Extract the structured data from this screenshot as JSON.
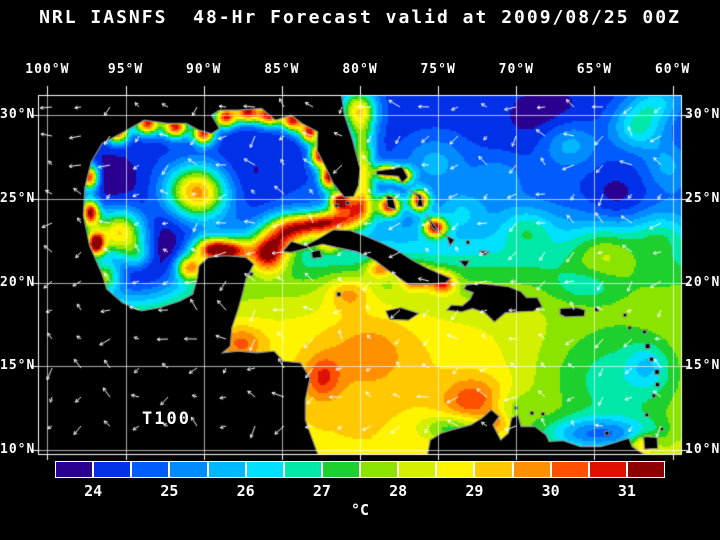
{
  "title": "NRL IASNFS  48-Hr Forecast valid at 2009/08/25 00Z",
  "field_label": "T100",
  "unit_label": "°C",
  "style": {
    "background": "#000000",
    "text": "#ffffff",
    "land": "#000000",
    "coastline": "#8c8c8c",
    "grid": "rgba(255,255,255,0.85)",
    "frame": "#ffffff",
    "vector": "rgba(255,255,255,0.95)"
  },
  "axes": {
    "lon_ticks": [
      {
        "label": "100°W",
        "lon": -100
      },
      {
        "label": "95°W",
        "lon": -95
      },
      {
        "label": "90°W",
        "lon": -90
      },
      {
        "label": "85°W",
        "lon": -85
      },
      {
        "label": "80°W",
        "lon": -80
      },
      {
        "label": "75°W",
        "lon": -75
      },
      {
        "label": "70°W",
        "lon": -70
      },
      {
        "label": "65°W",
        "lon": -65
      },
      {
        "label": "60°W",
        "lon": -60
      }
    ],
    "lat_ticks": [
      {
        "label": "30°N",
        "lat": 30
      },
      {
        "label": "25°N",
        "lat": 25
      },
      {
        "label": "20°N",
        "lat": 20
      },
      {
        "label": "15°N",
        "lat": 15
      },
      {
        "label": "10°N",
        "lat": 10
      }
    ]
  },
  "colorbar": {
    "min": 23.5,
    "max": 31.5,
    "step": 0.5,
    "colors": [
      "#2a0090",
      "#0030e8",
      "#005cff",
      "#008cff",
      "#00b8ff",
      "#00e0ff",
      "#00e8a8",
      "#1ed02e",
      "#8ae400",
      "#d2f000",
      "#fff400",
      "#ffc800",
      "#ff9000",
      "#ff5000",
      "#e01000",
      "#8c0000"
    ],
    "ticks": [
      {
        "label": "24",
        "value": 24
      },
      {
        "label": "25",
        "value": 25
      },
      {
        "label": "26",
        "value": 26
      },
      {
        "label": "27",
        "value": 27
      },
      {
        "label": "28",
        "value": 28
      },
      {
        "label": "29",
        "value": 29
      },
      {
        "label": "30",
        "value": 30
      },
      {
        "label": "31",
        "value": 31
      }
    ]
  },
  "chart_data": {
    "type": "heatmap",
    "title": "NRL IASNFS  48-Hr Forecast valid at 2009/08/25 00Z",
    "field": "T100",
    "units": "°C",
    "scale_min_c": 23.5,
    "scale_max_c": 31.5,
    "contour_interval_c": 0.5,
    "lon_range": [
      -100.6,
      -59.4
    ],
    "lat_range": [
      9.7,
      31.2
    ],
    "base_field": {
      "t_min_c": 24.2,
      "t_amp_c": 4.8,
      "lat_mid": 21.5,
      "lat_width": 1.8
    },
    "features": [
      [
        -90.4,
        25.4,
        5.5,
        1.35,
        1.1
      ],
      [
        -95.3,
        22.9,
        5.2,
        1.15,
        1.0
      ],
      [
        -96.3,
        20.4,
        3.2,
        0.7,
        0.6
      ],
      [
        -94.2,
        21.6,
        2.2,
        0.7,
        0.6
      ],
      [
        -85.9,
        21.8,
        5.0,
        0.85,
        0.8
      ],
      [
        -84.8,
        23.0,
        3.8,
        0.9,
        0.7
      ],
      [
        -83.2,
        23.4,
        4.2,
        1.1,
        0.5
      ],
      [
        -81.4,
        23.7,
        4.2,
        1.1,
        0.5
      ],
      [
        -80.1,
        24.5,
        4.2,
        0.7,
        0.6
      ],
      [
        -79.8,
        26.0,
        3.2,
        0.5,
        1.0
      ],
      [
        -79.85,
        28.0,
        3.0,
        0.55,
        1.2
      ],
      [
        -80.1,
        30.3,
        4.4,
        0.8,
        0.9
      ],
      [
        -94.6,
        20.6,
        -3.4,
        2.8,
        1.7
      ],
      [
        -92.5,
        23.0,
        -1.2,
        2.2,
        1.5
      ],
      [
        -96.0,
        25.8,
        -0.9,
        1.6,
        1.4
      ],
      [
        -87.5,
        25.5,
        -0.7,
        2.0,
        1.8
      ],
      [
        -97.3,
        26.3,
        6.5,
        0.4,
        0.5
      ],
      [
        -97.25,
        24.2,
        6.5,
        0.4,
        0.55
      ],
      [
        -96.9,
        22.3,
        6.5,
        0.4,
        0.5
      ],
      [
        -95.5,
        29.0,
        6.5,
        0.5,
        0.45
      ],
      [
        -93.6,
        29.5,
        6.5,
        0.55,
        0.45
      ],
      [
        -91.8,
        29.3,
        6.5,
        0.55,
        0.45
      ],
      [
        -90.0,
        28.9,
        6.5,
        0.5,
        0.45
      ],
      [
        -88.6,
        29.9,
        6.5,
        0.5,
        0.45
      ],
      [
        -87.2,
        30.2,
        6.5,
        0.55,
        0.45
      ],
      [
        -85.8,
        30.0,
        6.5,
        0.55,
        0.45
      ],
      [
        -84.3,
        29.7,
        6.5,
        0.5,
        0.45
      ],
      [
        -83.2,
        29.0,
        6.5,
        0.45,
        0.45
      ],
      [
        -82.6,
        27.6,
        6.5,
        0.4,
        0.5
      ],
      [
        -82.0,
        26.3,
        6.5,
        0.4,
        0.5
      ],
      [
        -81.3,
        24.9,
        6.0,
        0.45,
        0.4
      ],
      [
        -90.9,
        20.9,
        4.5,
        0.6,
        0.5
      ],
      [
        -89.6,
        22.0,
        5.0,
        0.8,
        0.5
      ],
      [
        -88.2,
        21.9,
        4.5,
        0.8,
        0.5
      ],
      [
        -78.1,
        24.6,
        6.2,
        0.5,
        0.45
      ],
      [
        -76.2,
        24.9,
        6.0,
        0.45,
        0.45
      ],
      [
        -75.2,
        23.3,
        6.0,
        0.5,
        0.4
      ],
      [
        -78.3,
        26.6,
        5.5,
        0.5,
        0.35
      ],
      [
        -77.2,
        26.4,
        5.0,
        0.4,
        0.35
      ],
      [
        -78.7,
        20.85,
        2.8,
        0.6,
        0.4
      ],
      [
        -82.0,
        22.25,
        2.5,
        0.7,
        0.35
      ],
      [
        -76.4,
        20.3,
        3.4,
        0.7,
        0.5
      ],
      [
        -74.7,
        20.0,
        3.2,
        0.55,
        0.45
      ],
      [
        -80.7,
        19.4,
        1.6,
        1.0,
        0.7
      ],
      [
        -79.5,
        16.0,
        1.0,
        2.2,
        1.8
      ],
      [
        -72.6,
        12.9,
        1.7,
        1.4,
        1.0
      ],
      [
        -71.2,
        11.6,
        1.3,
        0.6,
        0.5
      ],
      [
        -87.6,
        16.4,
        1.4,
        1.0,
        0.7
      ],
      [
        -82.4,
        14.3,
        1.5,
        0.8,
        0.9
      ],
      [
        -74.0,
        11.3,
        -1.8,
        1.5,
        0.6
      ],
      [
        -63.5,
        14.0,
        -2.2,
        4.0,
        2.8
      ],
      [
        -61.6,
        15.0,
        -1.2,
        0.9,
        0.9
      ],
      [
        -64.9,
        10.9,
        -3.0,
        2.6,
        0.75
      ],
      [
        -61.9,
        10.4,
        2.0,
        0.6,
        0.4
      ],
      [
        -70.3,
        12.4,
        -1.0,
        1.2,
        0.8
      ],
      [
        -75.2,
        27.2,
        1.3,
        1.4,
        1.1
      ],
      [
        -71.2,
        26.2,
        0.9,
        1.2,
        1.0
      ],
      [
        -66.6,
        28.3,
        1.5,
        1.3,
        1.0
      ],
      [
        -62.2,
        29.3,
        2.3,
        1.2,
        1.0
      ],
      [
        -60.3,
        27.0,
        1.2,
        1.0,
        1.0
      ],
      [
        -69.3,
        23.2,
        1.4,
        1.2,
        0.9
      ],
      [
        -64.3,
        21.9,
        1.6,
        1.6,
        1.2
      ],
      [
        -60.8,
        22.8,
        1.2,
        1.2,
        1.0
      ],
      [
        -73.5,
        24.3,
        1.0,
        1.0,
        0.8
      ],
      [
        -63.6,
        25.0,
        -0.9,
        1.4,
        1.1
      ],
      [
        -68.0,
        29.8,
        -0.6,
        1.8,
        1.2
      ],
      [
        -60.9,
        30.8,
        1.6,
        1.2,
        0.8
      ],
      [
        -65.5,
        19.8,
        -1.0,
        1.5,
        0.7
      ]
    ],
    "vectors": {
      "spacing_px": 29,
      "style": "white-arrows"
    }
  },
  "geo": {
    "mainland": [
      [
        -100.6,
        31.3
      ],
      [
        -81.2,
        31.3
      ],
      [
        -81.0,
        30.0
      ],
      [
        -80.5,
        28.6
      ],
      [
        -80.0,
        26.8
      ],
      [
        -80.1,
        25.8
      ],
      [
        -80.4,
        25.15
      ],
      [
        -81.0,
        25.1
      ],
      [
        -81.7,
        25.9
      ],
      [
        -82.2,
        26.9
      ],
      [
        -82.75,
        27.9
      ],
      [
        -82.7,
        29.0
      ],
      [
        -83.7,
        29.5
      ],
      [
        -84.4,
        30.0
      ],
      [
        -85.4,
        29.7
      ],
      [
        -86.3,
        30.4
      ],
      [
        -87.8,
        30.3
      ],
      [
        -89.0,
        30.3
      ],
      [
        -89.5,
        30.0
      ],
      [
        -89.0,
        29.2
      ],
      [
        -89.5,
        28.9
      ],
      [
        -90.3,
        29.1
      ],
      [
        -91.1,
        29.5
      ],
      [
        -92.3,
        29.5
      ],
      [
        -93.8,
        29.7
      ],
      [
        -95.1,
        29.0
      ],
      [
        -96.5,
        28.3
      ],
      [
        -97.2,
        27.2
      ],
      [
        -97.6,
        25.7
      ],
      [
        -97.7,
        24.0
      ],
      [
        -97.3,
        22.2
      ],
      [
        -96.5,
        20.5
      ],
      [
        -96.2,
        19.6
      ],
      [
        -95.2,
        18.8
      ],
      [
        -94.0,
        18.3
      ],
      [
        -92.8,
        18.5
      ],
      [
        -91.5,
        18.9
      ],
      [
        -90.7,
        19.3
      ],
      [
        -90.4,
        20.3
      ],
      [
        -90.3,
        21.0
      ],
      [
        -89.7,
        21.5
      ],
      [
        -88.6,
        21.6
      ],
      [
        -87.3,
        21.5
      ],
      [
        -86.8,
        21.1
      ],
      [
        -87.3,
        20.2
      ],
      [
        -87.5,
        19.4
      ],
      [
        -87.8,
        18.4
      ],
      [
        -88.2,
        17.3
      ],
      [
        -88.3,
        16.2
      ],
      [
        -88.8,
        15.8
      ],
      [
        -87.8,
        15.9
      ],
      [
        -86.6,
        15.8
      ],
      [
        -85.5,
        15.9
      ],
      [
        -84.9,
        15.3
      ],
      [
        -83.8,
        15.2
      ],
      [
        -83.2,
        14.3
      ],
      [
        -83.5,
        13.0
      ],
      [
        -83.5,
        11.8
      ],
      [
        -83.0,
        10.5
      ],
      [
        -82.6,
        9.5
      ],
      [
        -81.6,
        9.1
      ],
      [
        -80.7,
        9.0
      ],
      [
        -79.9,
        9.4
      ],
      [
        -79.1,
        9.3
      ],
      [
        -78.2,
        8.8
      ],
      [
        -77.3,
        8.4
      ],
      [
        -76.8,
        8.9
      ],
      [
        -76.9,
        9.5
      ],
      [
        -75.7,
        9.6
      ],
      [
        -75.5,
        10.6
      ],
      [
        -74.8,
        11.0
      ],
      [
        -74.1,
        11.2
      ],
      [
        -72.9,
        11.5
      ],
      [
        -72.2,
        11.9
      ],
      [
        -71.6,
        12.4
      ],
      [
        -71.1,
        12.0
      ],
      [
        -71.5,
        11.5
      ],
      [
        -71.0,
        10.6
      ],
      [
        -70.5,
        11.0
      ],
      [
        -70.3,
        11.9
      ],
      [
        -69.9,
        12.1
      ],
      [
        -69.7,
        11.4
      ],
      [
        -68.8,
        11.4
      ],
      [
        -68.1,
        10.9
      ],
      [
        -67.9,
        10.5
      ],
      [
        -67.0,
        10.55
      ],
      [
        -65.9,
        10.2
      ],
      [
        -64.6,
        10.2
      ],
      [
        -63.8,
        10.4
      ],
      [
        -62.8,
        10.7
      ],
      [
        -62.6,
        10.2
      ],
      [
        -62.1,
        9.9
      ],
      [
        -61.2,
        9.4
      ],
      [
        -100.6,
        9.4
      ]
    ],
    "islands": [
      [
        [
          -84.95,
          21.85
        ],
        [
          -84.4,
          22.45
        ],
        [
          -83.5,
          22.2
        ],
        [
          -82.6,
          22.65
        ],
        [
          -81.7,
          23.15
        ],
        [
          -80.6,
          23.1
        ],
        [
          -79.6,
          22.75
        ],
        [
          -78.7,
          22.4
        ],
        [
          -77.6,
          21.9
        ],
        [
          -76.6,
          21.3
        ],
        [
          -75.7,
          20.85
        ],
        [
          -74.2,
          20.25
        ],
        [
          -74.5,
          20.0
        ],
        [
          -75.5,
          19.9
        ],
        [
          -76.9,
          19.9
        ],
        [
          -77.6,
          20.35
        ],
        [
          -78.3,
          20.8
        ],
        [
          -79.0,
          21.3
        ],
        [
          -80.2,
          21.85
        ],
        [
          -81.5,
          22.1
        ],
        [
          -82.4,
          22.3
        ],
        [
          -83.4,
          22.05
        ],
        [
          -84.4,
          21.8
        ]
      ],
      [
        [
          -83.1,
          21.85
        ],
        [
          -82.55,
          21.95
        ],
        [
          -82.45,
          21.5
        ],
        [
          -83.05,
          21.45
        ]
      ],
      [
        [
          -78.35,
          18.3
        ],
        [
          -77.4,
          18.5
        ],
        [
          -76.25,
          18.15
        ],
        [
          -76.9,
          17.75
        ],
        [
          -78.1,
          17.8
        ]
      ],
      [
        [
          -74.45,
          18.35
        ],
        [
          -73.5,
          18.25
        ],
        [
          -72.8,
          18.45
        ],
        [
          -72.0,
          18.2
        ],
        [
          -71.4,
          17.65
        ],
        [
          -70.7,
          18.2
        ],
        [
          -69.9,
          18.25
        ],
        [
          -68.9,
          18.3
        ],
        [
          -68.35,
          18.55
        ],
        [
          -68.65,
          19.1
        ],
        [
          -69.35,
          19.1
        ],
        [
          -69.7,
          19.45
        ],
        [
          -70.5,
          19.75
        ],
        [
          -71.4,
          19.85
        ],
        [
          -72.4,
          19.95
        ],
        [
          -73.2,
          19.85
        ],
        [
          -73.35,
          19.6
        ],
        [
          -72.75,
          19.4
        ],
        [
          -72.95,
          19.0
        ],
        [
          -73.45,
          18.6
        ],
        [
          -74.15,
          18.65
        ]
      ],
      [
        [
          -67.2,
          18.45
        ],
        [
          -66.1,
          18.5
        ],
        [
          -65.6,
          18.35
        ],
        [
          -65.65,
          18.0
        ],
        [
          -66.85,
          17.95
        ],
        [
          -67.2,
          18.1
        ]
      ],
      [
        [
          -78.95,
          26.65
        ],
        [
          -78.2,
          26.75
        ],
        [
          -77.3,
          26.9
        ],
        [
          -76.95,
          26.3
        ],
        [
          -77.3,
          25.95
        ],
        [
          -77.55,
          26.35
        ],
        [
          -78.95,
          26.45
        ]
      ],
      [
        [
          -78.3,
          25.2
        ],
        [
          -77.9,
          25.1
        ],
        [
          -77.7,
          24.35
        ],
        [
          -78.25,
          24.5
        ]
      ],
      [
        [
          -76.75,
          25.45
        ],
        [
          -76.1,
          25.2
        ],
        [
          -75.95,
          24.55
        ],
        [
          -76.35,
          24.55
        ],
        [
          -76.25,
          25.1
        ]
      ],
      [
        [
          -75.7,
          23.95
        ],
        [
          -75.1,
          23.25
        ],
        [
          -74.85,
          22.95
        ],
        [
          -75.35,
          23.25
        ]
      ],
      [
        [
          -74.45,
          22.8
        ],
        [
          -73.95,
          22.55
        ],
        [
          -74.25,
          22.2
        ]
      ],
      [
        [
          -73.65,
          21.3
        ],
        [
          -73.0,
          21.3
        ],
        [
          -73.25,
          20.9
        ]
      ],
      [
        [
          -72.35,
          21.9
        ],
        [
          -71.7,
          21.85
        ],
        [
          -72.05,
          21.6
        ]
      ],
      [
        [
          -61.85,
          10.8
        ],
        [
          -61.0,
          10.75
        ],
        [
          -60.95,
          10.1
        ],
        [
          -61.8,
          10.05
        ]
      ]
    ],
    "island_dots": [
      [
        -81.35,
        19.3,
        0.25
      ],
      [
        -73.1,
        22.4,
        0.22
      ],
      [
        -64.85,
        18.4,
        0.25
      ],
      [
        -63.05,
        18.05,
        0.2
      ],
      [
        -62.75,
        17.3,
        0.2
      ],
      [
        -61.8,
        17.05,
        0.22
      ],
      [
        -61.6,
        16.2,
        0.3
      ],
      [
        -61.35,
        15.42,
        0.25
      ],
      [
        -61.0,
        14.66,
        0.28
      ],
      [
        -60.97,
        13.9,
        0.25
      ],
      [
        -61.2,
        13.25,
        0.22
      ],
      [
        -61.65,
        12.1,
        0.22
      ],
      [
        -60.7,
        11.25,
        0.2
      ],
      [
        -70.0,
        12.5,
        0.2
      ],
      [
        -69.0,
        12.2,
        0.22
      ],
      [
        -68.3,
        12.15,
        0.2
      ],
      [
        -64.2,
        11.0,
        0.25
      ],
      [
        -80.8,
        24.75,
        0.2
      ],
      [
        -81.5,
        24.6,
        0.2
      ],
      [
        -86.95,
        20.5,
        0.2
      ]
    ]
  }
}
